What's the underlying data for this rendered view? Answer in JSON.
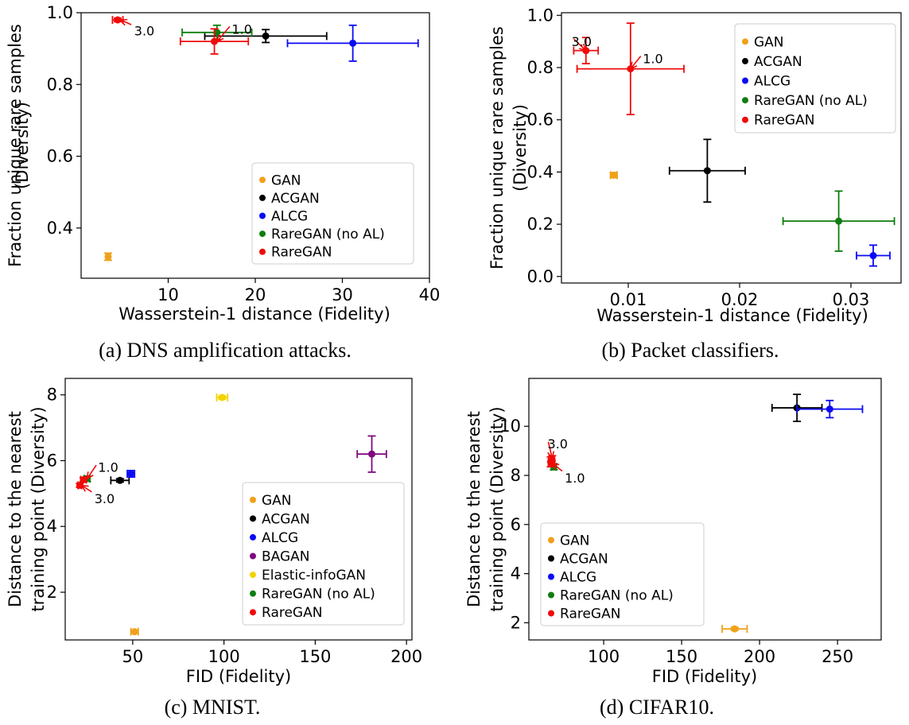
{
  "colors": {
    "GAN": "#f0a11a",
    "ACGAN": "#000000",
    "ALCG": "#0a0af5",
    "BAGAN": "#7f0a7f",
    "Elastic-infoGAN": "#f2d400",
    "RareGAN (no AL)": "#0f7d0f",
    "RareGAN": "#f00a0a"
  },
  "chart_data": [
    {
      "id": "a",
      "type": "scatter",
      "caption": "(a) DNS amplification attacks.",
      "xlabel": "Wasserstein-1 distance (Fidelity)",
      "ylabel": [
        "Fraction unique rare samples",
        "(Diversity)"
      ],
      "xlim": [
        0,
        40
      ],
      "ylim": [
        0.26,
        1.0
      ],
      "xticks": [
        10,
        20,
        30,
        40
      ],
      "xtick_labels": [
        "10",
        "20",
        "30",
        "40"
      ],
      "yticks": [
        0.4,
        0.6,
        0.8,
        1.0
      ],
      "ytick_labels": [
        "0.4",
        "0.6",
        "0.8",
        "1.0"
      ],
      "legend_position": "lower-right",
      "legend": [
        "GAN",
        "ACGAN",
        "ALCG",
        "RareGAN (no AL)",
        "RareGAN"
      ],
      "points": [
        {
          "series": "GAN",
          "x": 3.1,
          "y": 0.32,
          "xerr": 0.25,
          "yerr": 0.01
        },
        {
          "series": "ACGAN",
          "x": 21.2,
          "y": 0.935,
          "xerr": 7.0,
          "yerr": 0.018
        },
        {
          "series": "ALCG",
          "x": 31.2,
          "y": 0.915,
          "xerr": 7.5,
          "yerr": 0.05
        },
        {
          "series": "RareGAN (no AL)",
          "x": 15.6,
          "y": 0.945,
          "xerr": 4.0,
          "yerr": 0.02
        },
        {
          "series": "RareGAN",
          "x": 15.3,
          "y": 0.92,
          "xerr": 3.9,
          "yerr": 0.035
        },
        {
          "series": "RareGAN",
          "x": 4.2,
          "y": 0.98,
          "xerr": 0.6,
          "yerr": 0.005
        }
      ],
      "annotations": [
        {
          "text": "3.0",
          "x": 4.5,
          "y": 0.98,
          "tx": 6.1,
          "ty": 0.95
        },
        {
          "text": "1.0",
          "x": 15.6,
          "y": 0.92,
          "tx": 17.3,
          "ty": 0.955
        }
      ]
    },
    {
      "id": "b",
      "type": "scatter",
      "caption": "(b) Packet classifiers.",
      "xlabel": "Wasserstein-1 distance (Fidelity)",
      "ylabel": [
        "Fraction unique rare samples",
        "(Diversity)"
      ],
      "xlim": [
        0.004,
        0.0345
      ],
      "ylim": [
        -0.025,
        1.01
      ],
      "xticks": [
        0.01,
        0.02,
        0.03
      ],
      "xtick_labels": [
        "0.01",
        "0.02",
        "0.03"
      ],
      "yticks": [
        0.0,
        0.2,
        0.4,
        0.6,
        0.8,
        1.0
      ],
      "ytick_labels": [
        "0.0",
        "0.2",
        "0.4",
        "0.6",
        "0.8",
        "1.0"
      ],
      "legend_position": "upper-right",
      "legend": [
        "GAN",
        "ACGAN",
        "ALCG",
        "RareGAN (no AL)",
        "RareGAN"
      ],
      "points": [
        {
          "series": "GAN",
          "x": 0.0087,
          "y": 0.388,
          "xerr": 0.0003,
          "yerr": 0.01
        },
        {
          "series": "ACGAN",
          "x": 0.0171,
          "y": 0.405,
          "xerr": 0.0034,
          "yerr": 0.12
        },
        {
          "series": "ALCG",
          "x": 0.032,
          "y": 0.08,
          "xerr": 0.0015,
          "yerr": 0.04
        },
        {
          "series": "RareGAN (no AL)",
          "x": 0.0289,
          "y": 0.212,
          "xerr": 0.005,
          "yerr": 0.115
        },
        {
          "series": "RareGAN",
          "x": 0.0102,
          "y": 0.795,
          "xerr": 0.0048,
          "yerr": 0.175
        },
        {
          "series": "RareGAN",
          "x": 0.0062,
          "y": 0.865,
          "xerr": 0.0011,
          "yerr": 0.05
        }
      ],
      "annotations": [
        {
          "text": "3.0",
          "x": 0.0062,
          "y": 0.865,
          "tx": 0.0049,
          "ty": 0.9
        },
        {
          "text": "1.0",
          "x": 0.0102,
          "y": 0.795,
          "tx": 0.0113,
          "ty": 0.835
        }
      ]
    },
    {
      "id": "c",
      "type": "scatter",
      "caption": "(c) MNIST.",
      "xlabel": "FID (Fidelity)",
      "ylabel": [
        "Distance to the nearest",
        "training point (Diversity)"
      ],
      "xlim": [
        13,
        203
      ],
      "ylim": [
        0.55,
        8.5
      ],
      "xticks": [
        50,
        100,
        150,
        200
      ],
      "xtick_labels": [
        "50",
        "100",
        "150",
        "200"
      ],
      "yticks": [
        2,
        4,
        6,
        8
      ],
      "ytick_labels": [
        "2",
        "4",
        "6",
        "8"
      ],
      "legend_position": "lower-right",
      "legend": [
        "GAN",
        "ACGAN",
        "ALCG",
        "BAGAN",
        "Elastic-infoGAN",
        "RareGAN (no AL)",
        "RareGAN"
      ],
      "points": [
        {
          "series": "GAN",
          "x": 51,
          "y": 0.8,
          "xerr": 2,
          "yerr": 0.04
        },
        {
          "series": "ACGAN",
          "x": 43,
          "y": 5.4,
          "xerr": 5,
          "yerr": 0.05
        },
        {
          "series": "ALCG",
          "x": 49,
          "y": 5.6,
          "xerr": 2,
          "yerr": 0.1
        },
        {
          "series": "BAGAN",
          "x": 181,
          "y": 6.2,
          "xerr": 8,
          "yerr": 0.55
        },
        {
          "series": "Elastic-infoGAN",
          "x": 99,
          "y": 7.92,
          "xerr": 3,
          "yerr": 0.05
        },
        {
          "series": "RareGAN (no AL)",
          "x": 25,
          "y": 5.45,
          "xerr": 1.5,
          "yerr": 0.08
        },
        {
          "series": "RareGAN",
          "x": 23,
          "y": 5.42,
          "xerr": 1.5,
          "yerr": 0.06
        },
        {
          "series": "RareGAN",
          "x": 21,
          "y": 5.25,
          "xerr": 1,
          "yerr": 0.06
        }
      ],
      "annotations": [
        {
          "text": "1.0",
          "x": 25,
          "y": 5.45,
          "tx": 31,
          "ty": 5.8
        },
        {
          "text": "3.0",
          "x": 22,
          "y": 5.25,
          "tx": 29,
          "ty": 4.85
        }
      ]
    },
    {
      "id": "d",
      "type": "scatter",
      "caption": "(d) CIFAR10.",
      "xlabel": "FID (Fidelity)",
      "ylabel": [
        "Distance to the nearest",
        "training point (Diversity)"
      ],
      "xlim": [
        52,
        278
      ],
      "ylim": [
        1.3,
        11.95
      ],
      "xticks": [
        100,
        150,
        200,
        250
      ],
      "xtick_labels": [
        "100",
        "150",
        "200",
        "250"
      ],
      "yticks": [
        2,
        4,
        6,
        8,
        10
      ],
      "ytick_labels": [
        "2",
        "4",
        "6",
        "8",
        "10"
      ],
      "legend_position": "lower-left",
      "legend": [
        "GAN",
        "ACGAN",
        "ALCG",
        "RareGAN (no AL)",
        "RareGAN"
      ],
      "points": [
        {
          "series": "GAN",
          "x": 184,
          "y": 1.75,
          "xerr": 8,
          "yerr": 0.06
        },
        {
          "series": "ACGAN",
          "x": 224,
          "y": 10.75,
          "xerr": 16,
          "yerr": 0.55
        },
        {
          "series": "ALCG",
          "x": 245,
          "y": 10.7,
          "xerr": 21,
          "yerr": 0.35
        },
        {
          "series": "RareGAN (no AL)",
          "x": 68,
          "y": 8.35,
          "xerr": 1.5,
          "yerr": 0.12
        },
        {
          "series": "RareGAN",
          "x": 67,
          "y": 8.6,
          "xerr": 1.5,
          "yerr": 0.2
        },
        {
          "series": "RareGAN",
          "x": 66,
          "y": 8.55,
          "xerr": 1.5,
          "yerr": 0.2
        }
      ],
      "annotations": [
        {
          "text": "3.0",
          "x": 67,
          "y": 8.7,
          "tx": 64,
          "ty": 9.3
        },
        {
          "text": "1.0",
          "x": 67,
          "y": 8.5,
          "tx": 75,
          "ty": 7.9
        }
      ]
    }
  ]
}
